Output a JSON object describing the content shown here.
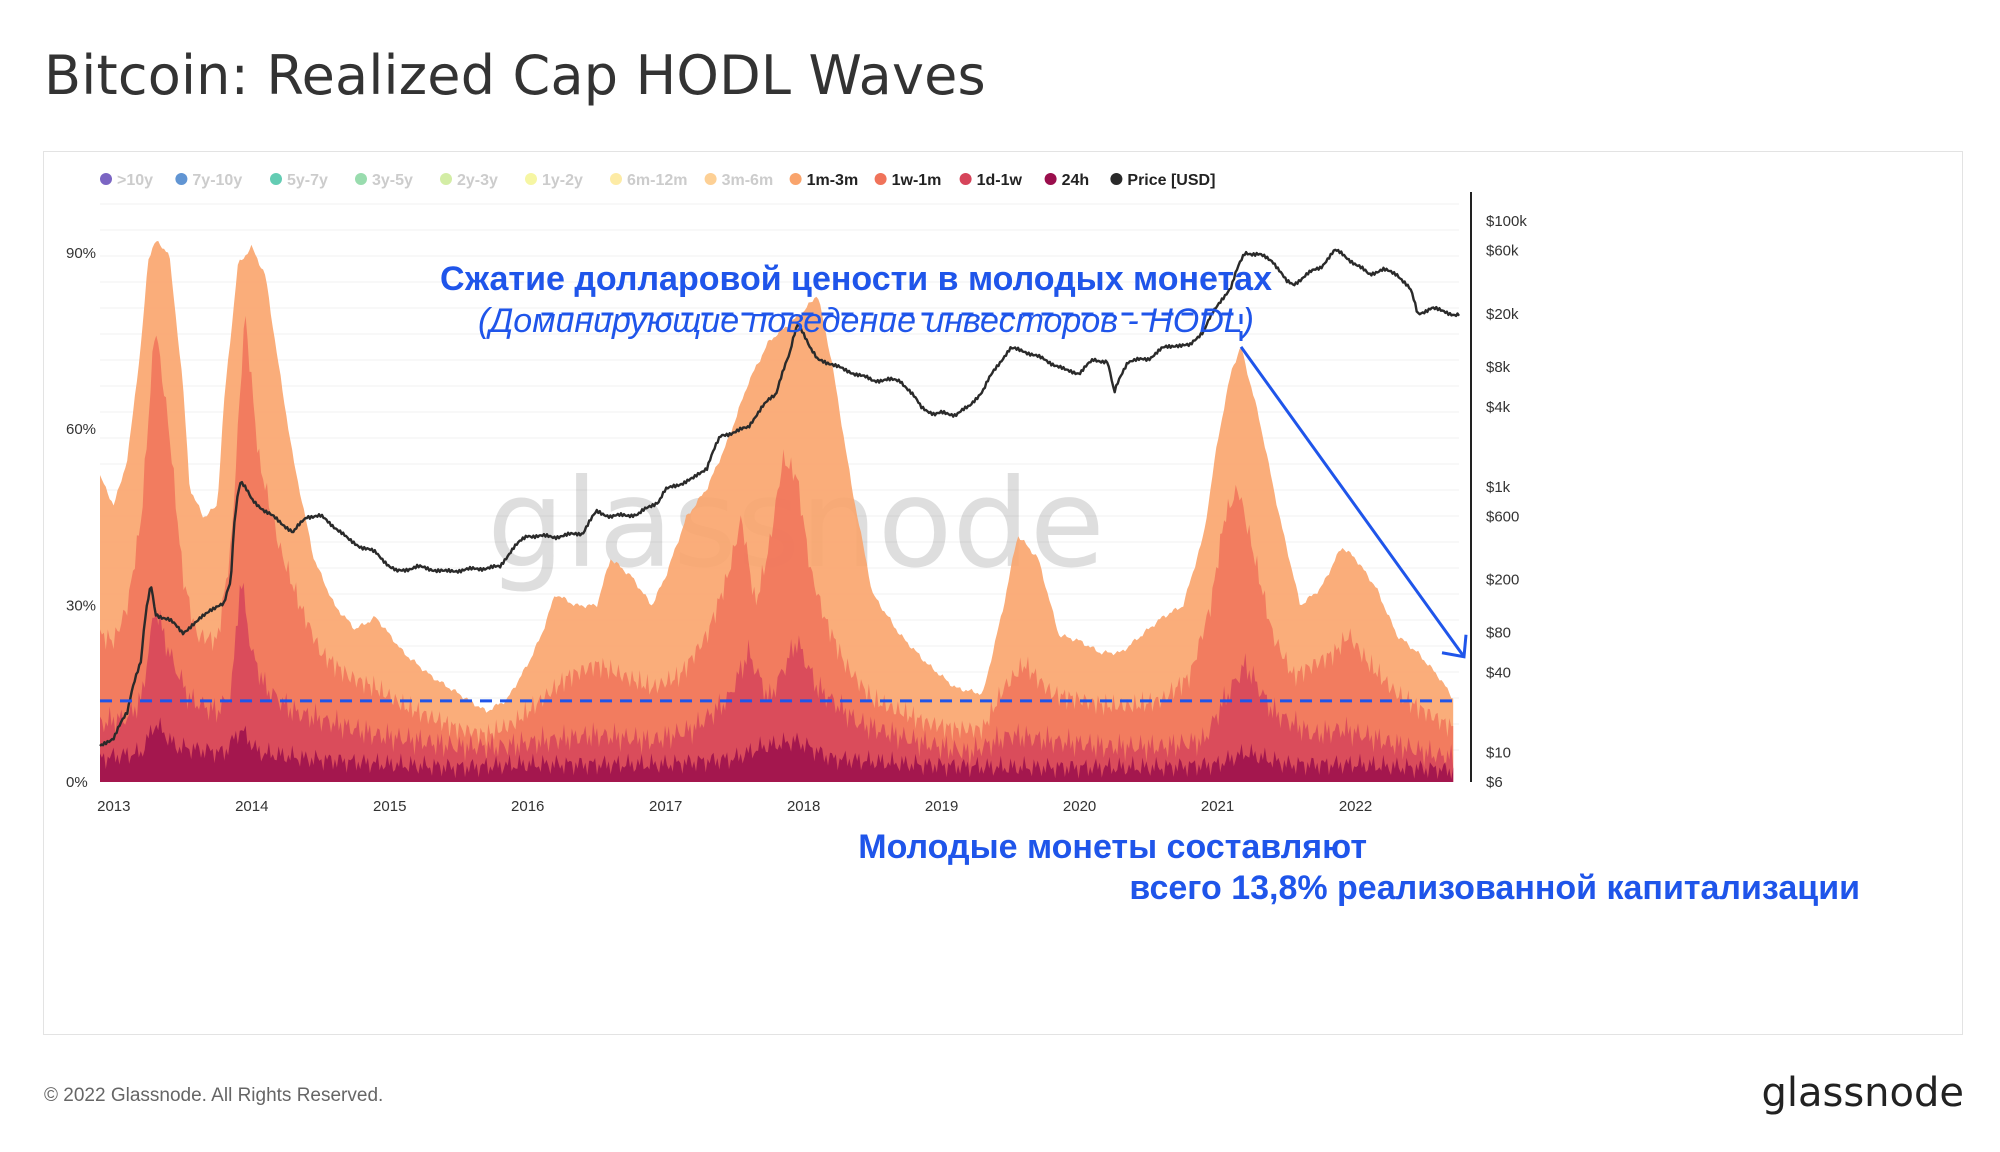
{
  "header": {
    "title": "Bitcoin: Realized Cap HODL Waves"
  },
  "footer": {
    "copyright": "© 2022 Glassnode. All Rights Reserved.",
    "logo": "glassnode"
  },
  "watermark": "glassnode",
  "chart_data": {
    "type": "area",
    "title": "Bitcoin: Realized Cap HODL Waves",
    "legend": [
      {
        "label": ">10y",
        "color": "#5a3fb4",
        "active": false
      },
      {
        "label": "7y-10y",
        "color": "#3a7bc8",
        "active": false
      },
      {
        "label": "5y-7y",
        "color": "#3cbfa0",
        "active": false
      },
      {
        "label": "3y-5y",
        "color": "#7fd39a",
        "active": false
      },
      {
        "label": "2y-3y",
        "color": "#c8e88f",
        "active": false
      },
      {
        "label": "1y-2y",
        "color": "#f4f48c",
        "active": false
      },
      {
        "label": "6m-12m",
        "color": "#fde68f",
        "active": false
      },
      {
        "label": "3m-6m",
        "color": "#fcc47a",
        "active": false
      },
      {
        "label": "1m-3m",
        "color": "#f9a46c",
        "active": true
      },
      {
        "label": "1w-1m",
        "color": "#f0735a",
        "active": true
      },
      {
        "label": "1d-1w",
        "color": "#d6445a",
        "active": true
      },
      {
        "label": "24h",
        "color": "#9a0e4c",
        "active": true
      },
      {
        "label": "Price [USD]",
        "color": "#2a2a2a",
        "active": true
      }
    ],
    "x_axis": {
      "range": [
        2012.9,
        2022.75
      ],
      "ticks": [
        {
          "v": 2013,
          "label": "2013"
        },
        {
          "v": 2014,
          "label": "2014"
        },
        {
          "v": 2015,
          "label": "2015"
        },
        {
          "v": 2016,
          "label": "2016"
        },
        {
          "v": 2017,
          "label": "2017"
        },
        {
          "v": 2018,
          "label": "2018"
        },
        {
          "v": 2019,
          "label": "2019"
        },
        {
          "v": 2020,
          "label": "2020"
        },
        {
          "v": 2021,
          "label": "2021"
        },
        {
          "v": 2022,
          "label": "2022"
        }
      ]
    },
    "y_axis_left": {
      "range": [
        0,
        100
      ],
      "ticks": [
        {
          "v": 0,
          "label": "0%"
        },
        {
          "v": 30,
          "label": "30%"
        },
        {
          "v": 60,
          "label": "60%"
        },
        {
          "v": 90,
          "label": "90%"
        }
      ]
    },
    "y_axis_right": {
      "scale": "log",
      "range": [
        6,
        160000
      ],
      "ticks": [
        {
          "v": 6,
          "label": "$6"
        },
        {
          "v": 10,
          "label": "$10"
        },
        {
          "v": 40,
          "label": "$40"
        },
        {
          "v": 80,
          "label": "$80"
        },
        {
          "v": 200,
          "label": "$200"
        },
        {
          "v": 600,
          "label": "$600"
        },
        {
          "v": 1000,
          "label": "$1k"
        },
        {
          "v": 4000,
          "label": "$4k"
        },
        {
          "v": 8000,
          "label": "$8k"
        },
        {
          "v": 20000,
          "label": "$20k"
        },
        {
          "v": 60000,
          "label": "$60k"
        },
        {
          "v": 100000,
          "label": "$100k"
        }
      ]
    },
    "series": [
      {
        "name": "1m-3m",
        "color": "#f9a46c",
        "x": [
          2012.9,
          2013.0,
          2013.1,
          2013.2,
          2013.25,
          2013.3,
          2013.4,
          2013.5,
          2013.55,
          2013.65,
          2013.75,
          2013.8,
          2013.9,
          2014.0,
          2014.1,
          2014.2,
          2014.3,
          2014.45,
          2014.6,
          2014.75,
          2014.9,
          2015.1,
          2015.3,
          2015.5,
          2015.7,
          2015.85,
          2016.0,
          2016.1,
          2016.2,
          2016.35,
          2016.5,
          2016.6,
          2016.75,
          2016.9,
          2017.0,
          2017.15,
          2017.3,
          2017.45,
          2017.6,
          2017.75,
          2017.9,
          2018.0,
          2018.1,
          2018.2,
          2018.35,
          2018.5,
          2018.7,
          2018.9,
          2019.1,
          2019.3,
          2019.45,
          2019.55,
          2019.7,
          2019.85,
          2020.0,
          2020.15,
          2020.3,
          2020.45,
          2020.6,
          2020.75,
          2020.9,
          2021.0,
          2021.1,
          2021.17,
          2021.3,
          2021.45,
          2021.6,
          2021.75,
          2021.9,
          2022.0,
          2022.15,
          2022.3,
          2022.45,
          2022.6,
          2022.72
        ],
        "values": [
          52,
          47,
          55,
          75,
          89,
          92,
          90,
          68,
          50,
          45,
          47,
          65,
          88,
          91,
          86,
          70,
          55,
          38,
          30,
          26,
          28,
          22,
          18,
          15,
          12,
          14,
          20,
          25,
          32,
          30,
          30,
          38,
          35,
          30,
          35,
          45,
          50,
          58,
          68,
          75,
          78,
          80,
          83,
          72,
          50,
          32,
          25,
          20,
          16,
          15,
          30,
          42,
          38,
          25,
          24,
          22,
          22,
          25,
          28,
          30,
          42,
          58,
          70,
          74,
          62,
          45,
          30,
          33,
          40,
          38,
          33,
          25,
          22,
          18,
          13.8
        ]
      },
      {
        "name": "1w-1m",
        "color": "#f0735a",
        "x": [
          2012.9,
          2013.0,
          2013.1,
          2013.2,
          2013.3,
          2013.4,
          2013.5,
          2013.6,
          2013.75,
          2013.85,
          2013.95,
          2014.05,
          2014.2,
          2014.35,
          2014.5,
          2014.7,
          2014.9,
          2015.1,
          2015.3,
          2015.5,
          2015.7,
          2015.9,
          2016.1,
          2016.3,
          2016.5,
          2016.7,
          2016.9,
          2017.1,
          2017.3,
          2017.45,
          2017.55,
          2017.65,
          2017.75,
          2017.85,
          2017.95,
          2018.05,
          2018.15,
          2018.3,
          2018.5,
          2018.7,
          2018.9,
          2019.1,
          2019.3,
          2019.45,
          2019.6,
          2019.8,
          2020.0,
          2020.2,
          2020.4,
          2020.6,
          2020.8,
          2020.95,
          2021.05,
          2021.15,
          2021.25,
          2021.4,
          2021.55,
          2021.7,
          2021.85,
          2021.95,
          2022.1,
          2022.3,
          2022.5,
          2022.72
        ],
        "values": [
          25,
          24,
          30,
          45,
          78,
          60,
          35,
          25,
          24,
          40,
          80,
          55,
          40,
          30,
          22,
          18,
          16,
          13,
          11,
          9,
          8,
          10,
          14,
          18,
          20,
          18,
          16,
          18,
          25,
          35,
          45,
          30,
          40,
          55,
          52,
          36,
          28,
          20,
          14,
          12,
          10,
          9,
          9,
          16,
          20,
          15,
          14,
          13,
          13,
          14,
          18,
          30,
          45,
          50,
          40,
          25,
          18,
          20,
          22,
          25,
          20,
          15,
          12,
          9
        ]
      },
      {
        "name": "1d-1w",
        "color": "#d6445a",
        "x": [
          2012.9,
          2013.1,
          2013.2,
          2013.3,
          2013.4,
          2013.55,
          2013.75,
          2013.85,
          2013.92,
          2014.0,
          2014.1,
          2014.3,
          2014.6,
          2014.9,
          2015.2,
          2015.5,
          2015.8,
          2016.1,
          2016.5,
          2016.9,
          2017.2,
          2017.45,
          2017.6,
          2017.75,
          2017.95,
          2018.1,
          2018.4,
          2018.8,
          2019.2,
          2019.5,
          2019.8,
          2020.2,
          2020.6,
          2020.9,
          2021.05,
          2021.2,
          2021.4,
          2021.7,
          2021.9,
          2022.2,
          2022.5,
          2022.72
        ],
        "values": [
          10,
          11,
          14,
          30,
          22,
          14,
          12,
          15,
          35,
          22,
          16,
          12,
          10,
          8,
          7,
          6,
          6,
          7,
          8,
          7,
          9,
          14,
          22,
          14,
          24,
          16,
          10,
          7,
          5,
          8,
          7,
          6,
          6,
          7,
          14,
          20,
          12,
          8,
          9,
          7,
          5,
          4
        ]
      },
      {
        "name": "24h",
        "color": "#9a0e4c",
        "x": [
          2012.9,
          2013.2,
          2013.3,
          2013.45,
          2013.8,
          2013.92,
          2014.05,
          2014.4,
          2015.0,
          2015.5,
          2016.0,
          2016.5,
          2017.0,
          2017.5,
          2017.7,
          2017.95,
          2018.2,
          2018.8,
          2019.4,
          2020.0,
          2020.6,
          2021.0,
          2021.2,
          2021.5,
          2022.0,
          2022.72
        ],
        "values": [
          4,
          5,
          10,
          6,
          5,
          9,
          5,
          4,
          3,
          2.5,
          3,
          3,
          3,
          4,
          6,
          7,
          4,
          3,
          2.5,
          2.5,
          2.5,
          3,
          5,
          3,
          3,
          2
        ]
      },
      {
        "name": "Price [USD]",
        "color": "#2a2a2a",
        "x": [
          2012.9,
          2013.0,
          2013.1,
          2013.2,
          2013.27,
          2013.3,
          2013.4,
          2013.5,
          2013.6,
          2013.7,
          2013.8,
          2013.85,
          2013.9,
          2013.92,
          2014.0,
          2014.1,
          2014.2,
          2014.3,
          2014.4,
          2014.5,
          2014.6,
          2014.7,
          2014.8,
          2014.9,
          2015.0,
          2015.05,
          2015.2,
          2015.4,
          2015.6,
          2015.8,
          2015.9,
          2016.0,
          2016.2,
          2016.4,
          2016.5,
          2016.6,
          2016.8,
          2016.95,
          2017.0,
          2017.1,
          2017.2,
          2017.3,
          2017.4,
          2017.5,
          2017.6,
          2017.7,
          2017.8,
          2017.9,
          2017.96,
          2018.05,
          2018.1,
          2018.2,
          2018.3,
          2018.4,
          2018.5,
          2018.6,
          2018.7,
          2018.85,
          2018.95,
          2019.0,
          2019.1,
          2019.2,
          2019.3,
          2019.4,
          2019.5,
          2019.6,
          2019.7,
          2019.8,
          2019.9,
          2020.0,
          2020.1,
          2020.2,
          2020.25,
          2020.35,
          2020.5,
          2020.6,
          2020.7,
          2020.8,
          2020.9,
          2021.0,
          2021.1,
          2021.2,
          2021.3,
          2021.4,
          2021.5,
          2021.55,
          2021.65,
          2021.75,
          2021.85,
          2021.9,
          2022.0,
          2022.1,
          2022.2,
          2022.3,
          2022.4,
          2022.45,
          2022.55,
          2022.65,
          2022.72
        ],
        "values": [
          11,
          13,
          20,
          50,
          180,
          110,
          100,
          80,
          95,
          120,
          130,
          200,
          900,
          1100,
          800,
          650,
          550,
          450,
          600,
          600,
          500,
          400,
          350,
          320,
          250,
          230,
          250,
          230,
          240,
          250,
          350,
          430,
          420,
          450,
          650,
          600,
          620,
          780,
          950,
          1050,
          1150,
          1400,
          2400,
          2600,
          2800,
          4000,
          5000,
          10000,
          17000,
          11000,
          9000,
          8500,
          7500,
          7000,
          6300,
          6400,
          6300,
          4000,
          3500,
          3600,
          3500,
          4000,
          5300,
          8000,
          11000,
          10500,
          9500,
          8500,
          7500,
          7200,
          9000,
          8800,
          5000,
          8800,
          9200,
          11000,
          11700,
          11500,
          15000,
          23000,
          32000,
          58000,
          56000,
          50000,
          35000,
          33000,
          40000,
          45000,
          60000,
          57000,
          47000,
          40000,
          43000,
          40000,
          30000,
          20000,
          22000,
          21000,
          19500
        ]
      }
    ],
    "annotations": {
      "top_line1": "Сжатие долларовой цености в молодых монетах",
      "top_line2": "(Доминирующие поведение инвесторов - HODL)",
      "bottom_line1": "Молодые монеты составляют",
      "bottom_line2": "всего 13,8% реализованной капитализации",
      "level_value": 13.8,
      "peak_2021": {
        "x": 2021.17,
        "y": 74
      },
      "top_line_price": 20000,
      "top_line_x_start": 2016.1
    }
  }
}
